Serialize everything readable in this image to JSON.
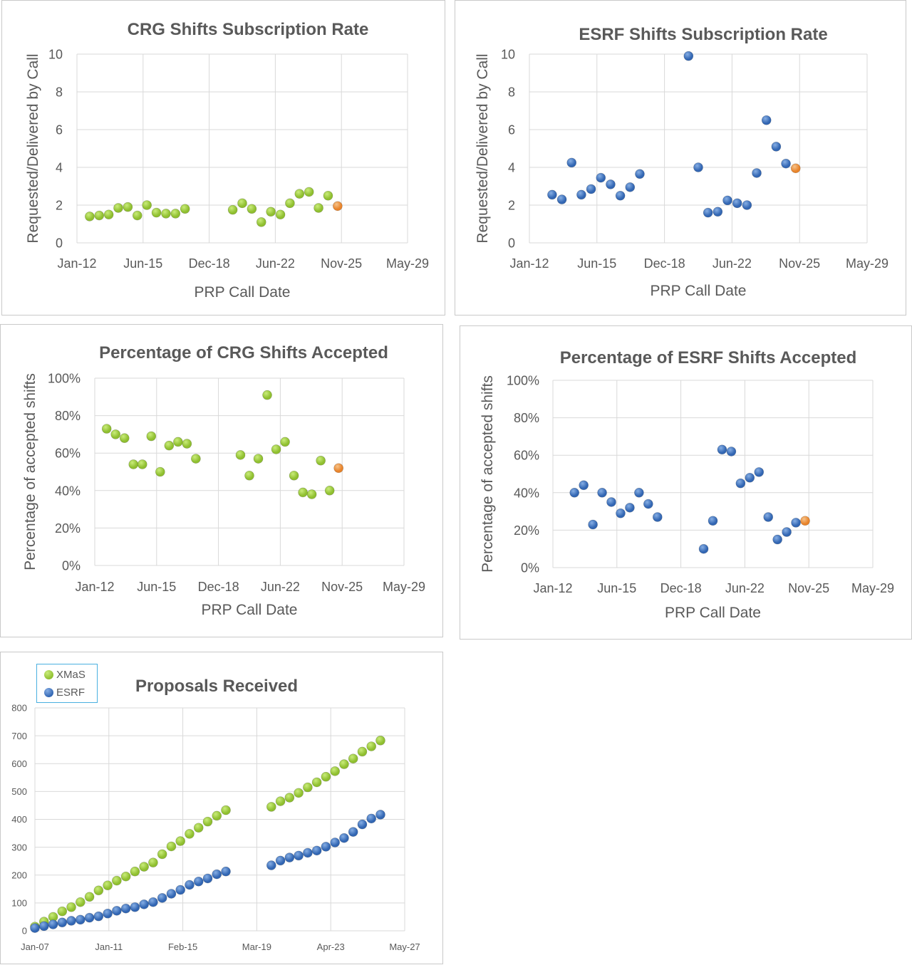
{
  "colors": {
    "green": "#8fbf2f",
    "green_light": "#c9ec7a",
    "blue": "#3266b3",
    "blue_light": "#86aee4",
    "orange": "#e8832a",
    "orange_light": "#f6c38a",
    "grid": "#d9d9d9",
    "text": "#595959",
    "legend_border": "#4ab0e0"
  },
  "chart_data": [
    {
      "id": "crg-sub",
      "type": "scatter",
      "title": "CRG Shifts Subscription Rate",
      "xlabel": "PRP Call Date",
      "ylabel": "Requested/Delivered by Call",
      "x_ticks": [
        "Jan-12",
        "Jun-15",
        "Dec-18",
        "Jun-22",
        "Nov-25",
        "May-29"
      ],
      "xlim": [
        "2012-01",
        "2029-05"
      ],
      "ylim": [
        0,
        10
      ],
      "y_ticks": [
        "0",
        "2",
        "4",
        "6",
        "8",
        "10"
      ],
      "grid": true,
      "marker_color": "green",
      "highlight_color": "orange",
      "points": [
        {
          "x": "2012-09",
          "y": 1.4
        },
        {
          "x": "2013-03",
          "y": 1.45
        },
        {
          "x": "2013-09",
          "y": 1.5
        },
        {
          "x": "2014-03",
          "y": 1.85
        },
        {
          "x": "2014-09",
          "y": 1.9
        },
        {
          "x": "2015-03",
          "y": 1.45
        },
        {
          "x": "2015-09",
          "y": 2.0
        },
        {
          "x": "2016-03",
          "y": 1.6
        },
        {
          "x": "2016-09",
          "y": 1.55
        },
        {
          "x": "2017-03",
          "y": 1.55
        },
        {
          "x": "2017-09",
          "y": 1.8
        },
        {
          "x": "2020-03",
          "y": 1.75
        },
        {
          "x": "2020-09",
          "y": 2.1
        },
        {
          "x": "2021-03",
          "y": 1.8
        },
        {
          "x": "2021-09",
          "y": 1.1
        },
        {
          "x": "2022-03",
          "y": 1.65
        },
        {
          "x": "2022-09",
          "y": 1.5
        },
        {
          "x": "2023-03",
          "y": 2.1
        },
        {
          "x": "2023-09",
          "y": 2.6
        },
        {
          "x": "2024-03",
          "y": 2.7
        },
        {
          "x": "2024-09",
          "y": 1.85
        },
        {
          "x": "2025-03",
          "y": 2.5
        },
        {
          "x": "2025-09",
          "y": 1.95,
          "highlight": true
        }
      ]
    },
    {
      "id": "esrf-sub",
      "type": "scatter",
      "title": "ESRF Shifts Subscription Rate",
      "xlabel": "PRP Call Date",
      "ylabel": "Requested/Delivered by Call",
      "x_ticks": [
        "Jan-12",
        "Jun-15",
        "Dec-18",
        "Jun-22",
        "Nov-25",
        "May-29"
      ],
      "xlim": [
        "2012-01",
        "2029-05"
      ],
      "ylim": [
        0,
        10
      ],
      "y_ticks": [
        "0",
        "2",
        "4",
        "6",
        "8",
        "10"
      ],
      "grid": true,
      "marker_color": "blue",
      "highlight_color": "orange",
      "points": [
        {
          "x": "2013-03",
          "y": 2.55
        },
        {
          "x": "2013-09",
          "y": 2.3
        },
        {
          "x": "2014-03",
          "y": 4.25
        },
        {
          "x": "2014-09",
          "y": 2.55
        },
        {
          "x": "2015-03",
          "y": 2.85
        },
        {
          "x": "2015-09",
          "y": 3.45
        },
        {
          "x": "2016-03",
          "y": 3.1
        },
        {
          "x": "2016-09",
          "y": 2.5
        },
        {
          "x": "2017-03",
          "y": 2.95
        },
        {
          "x": "2017-09",
          "y": 3.65
        },
        {
          "x": "2020-03",
          "y": 9.9
        },
        {
          "x": "2020-09",
          "y": 4.0
        },
        {
          "x": "2021-03",
          "y": 1.6
        },
        {
          "x": "2021-09",
          "y": 1.65
        },
        {
          "x": "2022-03",
          "y": 2.25
        },
        {
          "x": "2022-09",
          "y": 2.1
        },
        {
          "x": "2023-03",
          "y": 2.0
        },
        {
          "x": "2023-09",
          "y": 3.7
        },
        {
          "x": "2024-03",
          "y": 6.5
        },
        {
          "x": "2024-09",
          "y": 5.1
        },
        {
          "x": "2025-03",
          "y": 4.2
        },
        {
          "x": "2025-09",
          "y": 3.95,
          "highlight": true
        }
      ]
    },
    {
      "id": "crg-pct",
      "type": "scatter",
      "title": "Percentage of CRG Shifts Accepted",
      "xlabel": "PRP Call Date",
      "ylabel": "Percentage of accepted shifts",
      "x_ticks": [
        "Jan-12",
        "Jun-15",
        "Dec-18",
        "Jun-22",
        "Nov-25",
        "May-29"
      ],
      "xlim": [
        "2012-01",
        "2029-05"
      ],
      "ylim": [
        0,
        100
      ],
      "y_ticks": [
        "0%",
        "20%",
        "40%",
        "60%",
        "80%",
        "100%"
      ],
      "grid": true,
      "marker_color": "green",
      "highlight_color": "orange",
      "points": [
        {
          "x": "2012-09",
          "y": 73
        },
        {
          "x": "2013-03",
          "y": 70
        },
        {
          "x": "2013-09",
          "y": 68
        },
        {
          "x": "2014-03",
          "y": 54
        },
        {
          "x": "2014-09",
          "y": 54
        },
        {
          "x": "2015-03",
          "y": 69
        },
        {
          "x": "2015-09",
          "y": 50
        },
        {
          "x": "2016-03",
          "y": 64
        },
        {
          "x": "2016-09",
          "y": 66
        },
        {
          "x": "2017-03",
          "y": 65
        },
        {
          "x": "2017-09",
          "y": 57
        },
        {
          "x": "2020-03",
          "y": 59
        },
        {
          "x": "2020-09",
          "y": 48
        },
        {
          "x": "2021-03",
          "y": 57
        },
        {
          "x": "2021-09",
          "y": 91
        },
        {
          "x": "2022-03",
          "y": 62
        },
        {
          "x": "2022-09",
          "y": 66
        },
        {
          "x": "2023-03",
          "y": 48
        },
        {
          "x": "2023-09",
          "y": 39
        },
        {
          "x": "2024-03",
          "y": 38
        },
        {
          "x": "2024-09",
          "y": 56
        },
        {
          "x": "2025-03",
          "y": 40
        },
        {
          "x": "2025-09",
          "y": 52,
          "highlight": true
        }
      ]
    },
    {
      "id": "esrf-pct",
      "type": "scatter",
      "title": "Percentage of ESRF Shifts Accepted",
      "xlabel": "PRP Call Date",
      "ylabel": "Percentage of accepted shifts",
      "x_ticks": [
        "Jan-12",
        "Jun-15",
        "Dec-18",
        "Jun-22",
        "Nov-25",
        "May-29"
      ],
      "xlim": [
        "2012-01",
        "2029-05"
      ],
      "ylim": [
        0,
        100
      ],
      "y_ticks": [
        "0%",
        "20%",
        "40%",
        "60%",
        "80%",
        "100%"
      ],
      "grid": true,
      "marker_color": "blue",
      "highlight_color": "orange",
      "points": [
        {
          "x": "2013-03",
          "y": 40
        },
        {
          "x": "2013-09",
          "y": 44
        },
        {
          "x": "2014-03",
          "y": 23
        },
        {
          "x": "2014-09",
          "y": 40
        },
        {
          "x": "2015-03",
          "y": 35
        },
        {
          "x": "2015-09",
          "y": 29
        },
        {
          "x": "2016-03",
          "y": 32
        },
        {
          "x": "2016-09",
          "y": 40
        },
        {
          "x": "2017-03",
          "y": 34
        },
        {
          "x": "2017-09",
          "y": 27
        },
        {
          "x": "2020-03",
          "y": 10
        },
        {
          "x": "2020-09",
          "y": 25
        },
        {
          "x": "2021-03",
          "y": 63
        },
        {
          "x": "2021-09",
          "y": 62
        },
        {
          "x": "2022-03",
          "y": 45
        },
        {
          "x": "2022-09",
          "y": 48
        },
        {
          "x": "2023-03",
          "y": 51
        },
        {
          "x": "2023-09",
          "y": 27
        },
        {
          "x": "2024-03",
          "y": 15
        },
        {
          "x": "2024-09",
          "y": 19
        },
        {
          "x": "2025-03",
          "y": 24
        },
        {
          "x": "2025-09",
          "y": 25,
          "highlight": true
        }
      ]
    },
    {
      "id": "proposals",
      "type": "scatter",
      "title": "Proposals Received",
      "xlabel": "",
      "ylabel": "",
      "x_ticks": [
        "Jan-07",
        "Jan-11",
        "Feb-15",
        "Mar-19",
        "Apr-23",
        "May-27"
      ],
      "xlim": [
        "2007-01",
        "2027-05"
      ],
      "ylim": [
        0,
        800
      ],
      "y_ticks": [
        "0",
        "100",
        "200",
        "300",
        "400",
        "500",
        "600",
        "700",
        "800"
      ],
      "grid": true,
      "legend": "top-left",
      "series": [
        {
          "name": "XMaS",
          "color": "green",
          "points": [
            {
              "x": "2007-01",
              "y": 15
            },
            {
              "x": "2007-07",
              "y": 33
            },
            {
              "x": "2008-01",
              "y": 50
            },
            {
              "x": "2008-07",
              "y": 70
            },
            {
              "x": "2009-01",
              "y": 85
            },
            {
              "x": "2009-07",
              "y": 103
            },
            {
              "x": "2010-01",
              "y": 122
            },
            {
              "x": "2010-07",
              "y": 145
            },
            {
              "x": "2011-01",
              "y": 163
            },
            {
              "x": "2011-07",
              "y": 180
            },
            {
              "x": "2012-01",
              "y": 195
            },
            {
              "x": "2012-07",
              "y": 213
            },
            {
              "x": "2013-01",
              "y": 230
            },
            {
              "x": "2013-07",
              "y": 245
            },
            {
              "x": "2014-01",
              "y": 275
            },
            {
              "x": "2014-07",
              "y": 303
            },
            {
              "x": "2015-01",
              "y": 322
            },
            {
              "x": "2015-07",
              "y": 348
            },
            {
              "x": "2016-01",
              "y": 370
            },
            {
              "x": "2016-07",
              "y": 392
            },
            {
              "x": "2017-01",
              "y": 413
            },
            {
              "x": "2017-07",
              "y": 433
            },
            {
              "x": "2020-01",
              "y": 445
            },
            {
              "x": "2020-07",
              "y": 465
            },
            {
              "x": "2021-01",
              "y": 478
            },
            {
              "x": "2021-07",
              "y": 495
            },
            {
              "x": "2022-01",
              "y": 515
            },
            {
              "x": "2022-07",
              "y": 533
            },
            {
              "x": "2023-01",
              "y": 553
            },
            {
              "x": "2023-07",
              "y": 573
            },
            {
              "x": "2024-01",
              "y": 598
            },
            {
              "x": "2024-07",
              "y": 618
            },
            {
              "x": "2025-01",
              "y": 643
            },
            {
              "x": "2025-07",
              "y": 662
            },
            {
              "x": "2026-01",
              "y": 683
            }
          ]
        },
        {
          "name": "ESRF",
          "color": "blue",
          "points": [
            {
              "x": "2007-01",
              "y": 10
            },
            {
              "x": "2007-07",
              "y": 17
            },
            {
              "x": "2008-01",
              "y": 23
            },
            {
              "x": "2008-07",
              "y": 30
            },
            {
              "x": "2009-01",
              "y": 36
            },
            {
              "x": "2009-07",
              "y": 40
            },
            {
              "x": "2010-01",
              "y": 47
            },
            {
              "x": "2010-07",
              "y": 52
            },
            {
              "x": "2011-01",
              "y": 62
            },
            {
              "x": "2011-07",
              "y": 72
            },
            {
              "x": "2012-01",
              "y": 80
            },
            {
              "x": "2012-07",
              "y": 85
            },
            {
              "x": "2013-01",
              "y": 95
            },
            {
              "x": "2013-07",
              "y": 103
            },
            {
              "x": "2014-01",
              "y": 118
            },
            {
              "x": "2014-07",
              "y": 133
            },
            {
              "x": "2015-01",
              "y": 147
            },
            {
              "x": "2015-07",
              "y": 165
            },
            {
              "x": "2016-01",
              "y": 177
            },
            {
              "x": "2016-07",
              "y": 188
            },
            {
              "x": "2017-01",
              "y": 203
            },
            {
              "x": "2017-07",
              "y": 213
            },
            {
              "x": "2020-01",
              "y": 235
            },
            {
              "x": "2020-07",
              "y": 252
            },
            {
              "x": "2021-01",
              "y": 263
            },
            {
              "x": "2021-07",
              "y": 270
            },
            {
              "x": "2022-01",
              "y": 280
            },
            {
              "x": "2022-07",
              "y": 288
            },
            {
              "x": "2023-01",
              "y": 302
            },
            {
              "x": "2023-07",
              "y": 317
            },
            {
              "x": "2024-01",
              "y": 333
            },
            {
              "x": "2024-07",
              "y": 355
            },
            {
              "x": "2025-01",
              "y": 382
            },
            {
              "x": "2025-07",
              "y": 403
            },
            {
              "x": "2026-01",
              "y": 417
            }
          ]
        }
      ]
    }
  ]
}
